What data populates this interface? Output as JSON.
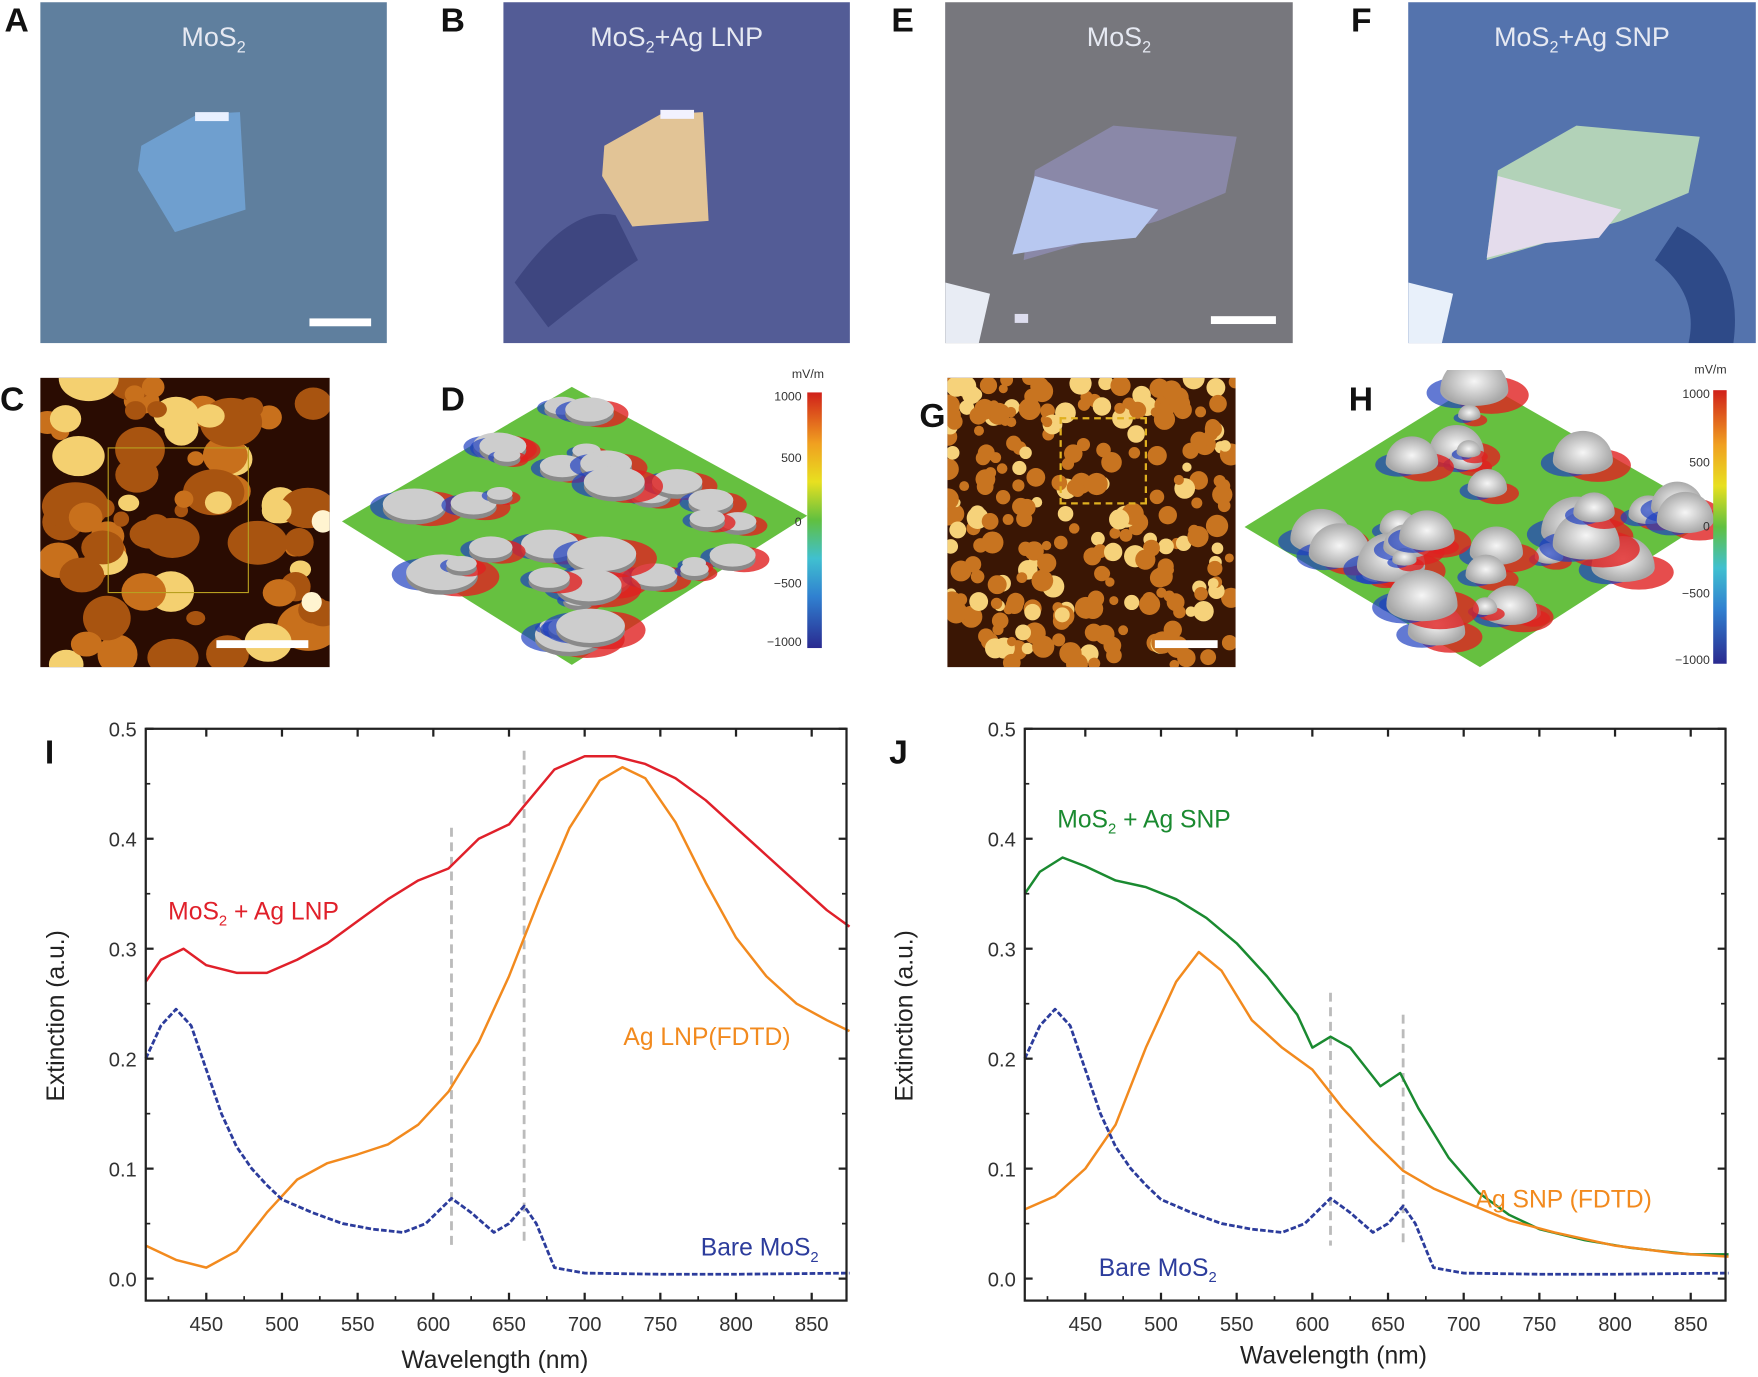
{
  "panels": {
    "A": {
      "letter": "A",
      "title_pre": "MoS",
      "title_sub": "2",
      "title_post": ""
    },
    "B": {
      "letter": "B",
      "title_pre": "MoS",
      "title_sub": "2",
      "title_post": "+Ag LNP"
    },
    "C": {
      "letter": "C"
    },
    "D": {
      "letter": "D",
      "colorbar_unit": "mV/m",
      "colorbar_ticks": [
        "1000",
        "500",
        "0",
        "−500",
        "−1000"
      ]
    },
    "E": {
      "letter": "E",
      "title_pre": "MoS",
      "title_sub": "2",
      "title_post": ""
    },
    "F": {
      "letter": "F",
      "title_pre": "MoS",
      "title_sub": "2",
      "title_post": "+Ag SNP"
    },
    "G": {
      "letter": "G"
    },
    "H": {
      "letter": "H",
      "colorbar_unit": "mV/m",
      "colorbar_ticks": [
        "1000",
        "500",
        "0",
        "−500",
        "−1000"
      ]
    },
    "I": {
      "letter": "I"
    },
    "J": {
      "letter": "J"
    }
  },
  "colors": {
    "red": "#e0202a",
    "orange": "#f28a1e",
    "blue": "#2c3c9c",
    "green": "#1a8a30",
    "dash": "#bbbbbb"
  },
  "chart_data": [
    {
      "panel": "I",
      "type": "line",
      "xlabel": "Wavelength (nm)",
      "ylabel": "Extinction (a.u.)",
      "xlim": [
        410,
        873
      ],
      "ylim": [
        -0.02,
        0.5
      ],
      "xticks": [
        "450",
        "500",
        "550",
        "600",
        "650",
        "700",
        "750",
        "800",
        "850"
      ],
      "yticks": [
        "0.0",
        "0.1",
        "0.2",
        "0.3",
        "0.4",
        "0.5"
      ],
      "vlines": [
        612,
        660
      ],
      "series": [
        {
          "name_pre": "MoS",
          "name_sub": "2",
          "name_post": " + Ag LNP",
          "color": "#e0202a",
          "style": "solid",
          "x": [
            410,
            420,
            435,
            450,
            470,
            490,
            510,
            530,
            550,
            570,
            590,
            610,
            630,
            650,
            660,
            680,
            700,
            720,
            740,
            760,
            780,
            800,
            820,
            840,
            860,
            875
          ],
          "y": [
            0.27,
            0.29,
            0.3,
            0.285,
            0.278,
            0.278,
            0.29,
            0.305,
            0.325,
            0.345,
            0.362,
            0.373,
            0.4,
            0.413,
            0.43,
            0.463,
            0.475,
            0.475,
            0.468,
            0.455,
            0.435,
            0.41,
            0.385,
            0.36,
            0.335,
            0.32
          ]
        },
        {
          "name_pre": "Ag  LNP(FDTD)",
          "name_sub": "",
          "name_post": "",
          "color": "#f28a1e",
          "style": "solid",
          "x": [
            410,
            430,
            450,
            470,
            490,
            510,
            530,
            550,
            570,
            590,
            610,
            630,
            650,
            670,
            690,
            710,
            725,
            740,
            760,
            780,
            800,
            820,
            840,
            860,
            875
          ],
          "y": [
            0.03,
            0.017,
            0.01,
            0.025,
            0.06,
            0.09,
            0.105,
            0.113,
            0.122,
            0.14,
            0.17,
            0.215,
            0.275,
            0.345,
            0.41,
            0.453,
            0.465,
            0.455,
            0.415,
            0.36,
            0.31,
            0.275,
            0.25,
            0.235,
            0.225
          ]
        },
        {
          "name_pre": "Bare MoS",
          "name_sub": "2",
          "name_post": "",
          "color": "#2c3c9c",
          "style": "dashed",
          "x": [
            410,
            420,
            430,
            440,
            450,
            460,
            470,
            480,
            490,
            500,
            520,
            540,
            560,
            580,
            595,
            612,
            625,
            640,
            650,
            660,
            668,
            680,
            700,
            750,
            800,
            875
          ],
          "y": [
            0.2,
            0.23,
            0.245,
            0.23,
            0.19,
            0.15,
            0.12,
            0.1,
            0.085,
            0.072,
            0.06,
            0.05,
            0.045,
            0.042,
            0.05,
            0.073,
            0.06,
            0.042,
            0.05,
            0.066,
            0.05,
            0.01,
            0.005,
            0.004,
            0.004,
            0.005
          ]
        }
      ]
    },
    {
      "panel": "J",
      "type": "line",
      "xlabel": "Wavelength (nm)",
      "ylabel": "Extinction (a.u.)",
      "xlim": [
        410,
        873
      ],
      "ylim": [
        -0.02,
        0.5
      ],
      "xticks": [
        "450",
        "500",
        "550",
        "600",
        "650",
        "700",
        "750",
        "800",
        "850"
      ],
      "yticks": [
        "0.0",
        "0.1",
        "0.2",
        "0.3",
        "0.4",
        "0.5"
      ],
      "vlines": [
        612,
        660
      ],
      "series": [
        {
          "name_pre": "MoS",
          "name_sub": "2",
          "name_post": " + Ag SNP",
          "color": "#1a8a30",
          "style": "solid",
          "x": [
            410,
            420,
            435,
            450,
            470,
            490,
            510,
            530,
            550,
            570,
            590,
            600,
            612,
            625,
            645,
            658,
            670,
            690,
            710,
            730,
            750,
            780,
            810,
            850,
            875
          ],
          "y": [
            0.35,
            0.37,
            0.383,
            0.375,
            0.362,
            0.356,
            0.345,
            0.328,
            0.305,
            0.275,
            0.24,
            0.21,
            0.22,
            0.21,
            0.175,
            0.187,
            0.155,
            0.11,
            0.078,
            0.058,
            0.045,
            0.035,
            0.028,
            0.022,
            0.022
          ]
        },
        {
          "name_pre": "Ag SNP (FDTD)",
          "name_sub": "",
          "name_post": "",
          "color": "#f28a1e",
          "style": "solid",
          "x": [
            410,
            430,
            450,
            470,
            490,
            510,
            525,
            540,
            560,
            580,
            600,
            620,
            640,
            660,
            680,
            700,
            730,
            760,
            800,
            840,
            875
          ],
          "y": [
            0.063,
            0.075,
            0.1,
            0.14,
            0.21,
            0.27,
            0.297,
            0.28,
            0.235,
            0.21,
            0.19,
            0.155,
            0.125,
            0.098,
            0.082,
            0.07,
            0.053,
            0.042,
            0.03,
            0.023,
            0.02
          ]
        },
        {
          "name_pre": "Bare MoS",
          "name_sub": "2",
          "name_post": "",
          "color": "#2c3c9c",
          "style": "dashed",
          "x": [
            410,
            420,
            430,
            440,
            450,
            460,
            470,
            480,
            490,
            500,
            520,
            540,
            560,
            580,
            595,
            612,
            625,
            640,
            650,
            660,
            668,
            680,
            700,
            750,
            800,
            875
          ],
          "y": [
            0.2,
            0.23,
            0.245,
            0.23,
            0.19,
            0.15,
            0.12,
            0.1,
            0.085,
            0.072,
            0.06,
            0.05,
            0.045,
            0.042,
            0.05,
            0.073,
            0.06,
            0.042,
            0.05,
            0.066,
            0.05,
            0.01,
            0.005,
            0.004,
            0.004,
            0.005
          ]
        }
      ]
    }
  ]
}
